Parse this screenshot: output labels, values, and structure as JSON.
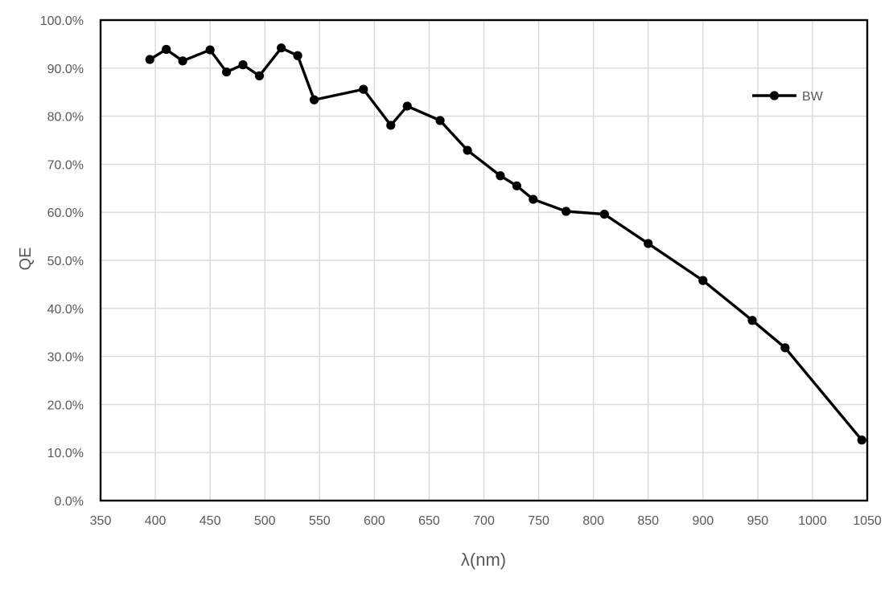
{
  "chart_data": {
    "type": "line",
    "title": "",
    "xlabel": "λ(nm)",
    "ylabel": "QE",
    "xlim": [
      350,
      1050
    ],
    "ylim": [
      0,
      100
    ],
    "x_ticks": [
      350,
      400,
      450,
      500,
      550,
      600,
      650,
      700,
      750,
      800,
      850,
      900,
      950,
      1000,
      1050
    ],
    "x_tick_labels": [
      "350",
      "400",
      "450",
      "500",
      "550",
      "600",
      "650",
      "700",
      "750",
      "800",
      "850",
      "900",
      "950",
      "1000",
      "1050"
    ],
    "y_ticks": [
      0,
      10,
      20,
      30,
      40,
      50,
      60,
      70,
      80,
      90,
      100
    ],
    "y_tick_labels": [
      "0.0%",
      "10.0%",
      "20.0%",
      "30.0%",
      "40.0%",
      "50.0%",
      "60.0%",
      "70.0%",
      "80.0%",
      "90.0%",
      "100.0%"
    ],
    "grid": true,
    "legend": {
      "position": "inside-top-right",
      "entries": [
        {
          "label": "BW",
          "marker": "circle-on-line"
        }
      ]
    },
    "series": [
      {
        "name": "BW",
        "color": "#000000",
        "marker": "circle",
        "x": [
          395,
          410,
          425,
          450,
          465,
          480,
          495,
          515,
          530,
          545,
          590,
          615,
          630,
          660,
          685,
          715,
          730,
          745,
          775,
          810,
          850,
          900,
          945,
          975,
          1045
        ],
        "y_percent": [
          91.8,
          93.9,
          91.5,
          93.8,
          89.2,
          90.7,
          88.4,
          94.2,
          92.6,
          83.4,
          85.6,
          78.1,
          82.1,
          79.1,
          72.9,
          67.6,
          65.5,
          62.7,
          60.2,
          59.6,
          53.5,
          45.8,
          37.5,
          31.8,
          12.6
        ]
      }
    ],
    "colors": {
      "series": "#000000",
      "gridline": "#d9d9d9",
      "plot_border": "#000000",
      "axis_text": "#595959",
      "background": "#ffffff"
    }
  }
}
